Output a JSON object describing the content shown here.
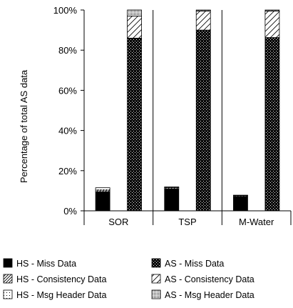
{
  "chart_data": {
    "type": "bar",
    "stacked": true,
    "title": "",
    "xlabel": "",
    "ylabel": "Percentage of total AS data",
    "ylim": [
      0,
      100
    ],
    "yticks": [
      "0%",
      "20%",
      "40%",
      "60%",
      "80%",
      "100%"
    ],
    "ytick_values": [
      0,
      20,
      40,
      60,
      80,
      100
    ],
    "categories": [
      "SOR",
      "TSP",
      "M-Water"
    ],
    "grid": false,
    "legend_position": "bottom",
    "groups": [
      {
        "name": "HS",
        "series": [
          {
            "name": "HS - Miss Data",
            "pattern": "solid",
            "values": [
              9.5,
              11.0,
              7.2
            ]
          },
          {
            "name": "HS - Consistency Data",
            "pattern": "diagonal-dense",
            "values": [
              0.8,
              0.6,
              0.4
            ]
          },
          {
            "name": "HS - Msg Header Data",
            "pattern": "dots-sparse",
            "values": [
              1.2,
              0.3,
              0.2
            ]
          }
        ]
      },
      {
        "name": "AS",
        "series": [
          {
            "name": "AS - Miss Data",
            "pattern": "dots-on-black",
            "values": [
              86.0,
              90.0,
              86.3
            ]
          },
          {
            "name": "AS - Consistency Data",
            "pattern": "diagonal-sparse",
            "values": [
              11.0,
              9.5,
              13.2
            ]
          },
          {
            "name": "AS - Msg Header Data",
            "pattern": "dots-dense",
            "values": [
              3.0,
              0.5,
              0.5
            ]
          }
        ]
      }
    ]
  }
}
